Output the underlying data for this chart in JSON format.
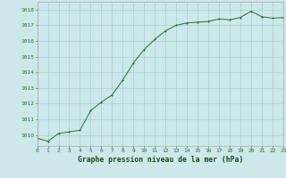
{
  "x": [
    0,
    1,
    2,
    3,
    4,
    5,
    6,
    7,
    8,
    9,
    10,
    11,
    12,
    13,
    14,
    15,
    16,
    17,
    18,
    19,
    20,
    21,
    22,
    23
  ],
  "y": [
    1009.8,
    1009.6,
    1010.1,
    1010.2,
    1010.3,
    1011.55,
    1012.1,
    1012.55,
    1013.5,
    1014.6,
    1015.45,
    1016.1,
    1016.65,
    1017.0,
    1017.15,
    1017.2,
    1017.25,
    1017.4,
    1017.35,
    1017.5,
    1017.9,
    1017.55,
    1017.45,
    1017.5
  ],
  "line_color": "#2d6a2d",
  "marker_color": "#2d6a2d",
  "bg_color": "#cce8ea",
  "grid_color": "#aacccc",
  "xlabel": "Graphe pression niveau de la mer (hPa)",
  "xlabel_color": "#1a4a1a",
  "ylabel_ticks": [
    1010,
    1011,
    1012,
    1013,
    1014,
    1015,
    1016,
    1017,
    1018
  ],
  "xlim": [
    0,
    23
  ],
  "ylim": [
    1009.3,
    1018.5
  ],
  "tick_color": "#2d6a2d",
  "spine_color": "#aaaaaa",
  "xtick_fontsize": 4.5,
  "ytick_fontsize": 4.5,
  "xlabel_fontsize": 5.8,
  "linewidth": 0.7,
  "markersize": 1.8
}
